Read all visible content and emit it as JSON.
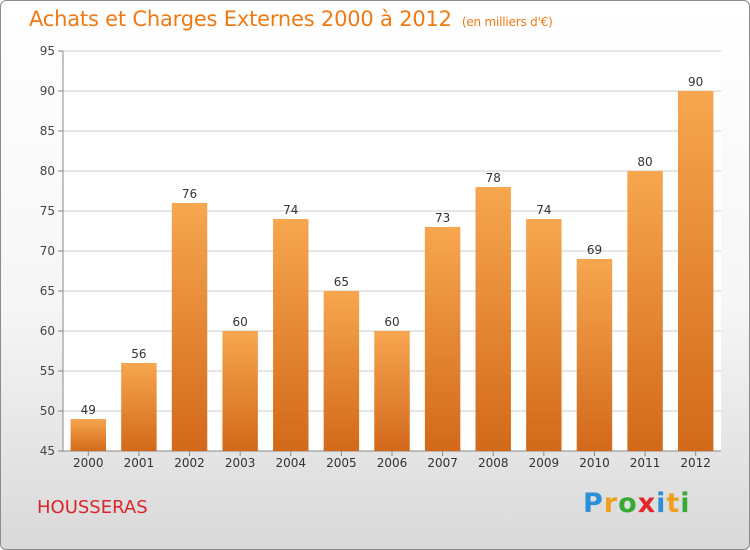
{
  "header": {
    "title": "Achats et Charges Externes 2000 à 2012",
    "subtitle": "(en milliers d'€)"
  },
  "footer": {
    "place": "HOUSSERAS",
    "logo_letters": [
      {
        "ch": "P",
        "color": "#2b8fd6"
      },
      {
        "ch": "r",
        "color": "#f0a020"
      },
      {
        "ch": "o",
        "color": "#39a935"
      },
      {
        "ch": "x",
        "color": "#e3262c"
      },
      {
        "ch": "i",
        "color": "#2b8fd6"
      },
      {
        "ch": "t",
        "color": "#f0a020"
      },
      {
        "ch": "i",
        "color": "#39a935"
      }
    ]
  },
  "chart_data": {
    "type": "bar",
    "categories": [
      "2000",
      "2001",
      "2002",
      "2003",
      "2004",
      "2005",
      "2006",
      "2007",
      "2008",
      "2009",
      "2010",
      "2011",
      "2012"
    ],
    "values": [
      49,
      56,
      76,
      60,
      74,
      65,
      60,
      73,
      78,
      74,
      69,
      80,
      90
    ],
    "data_labels": [
      "49",
      "56",
      "76",
      "60",
      "74",
      "65",
      "60",
      "73",
      "78",
      "74",
      "69",
      "80",
      "90"
    ],
    "ylim": [
      45,
      95
    ],
    "yticks": [
      45,
      50,
      55,
      60,
      65,
      70,
      75,
      80,
      85,
      90,
      95
    ],
    "grid": true,
    "bar_color_top": "#f7a64f",
    "bar_color_bottom": "#d2691a"
  }
}
